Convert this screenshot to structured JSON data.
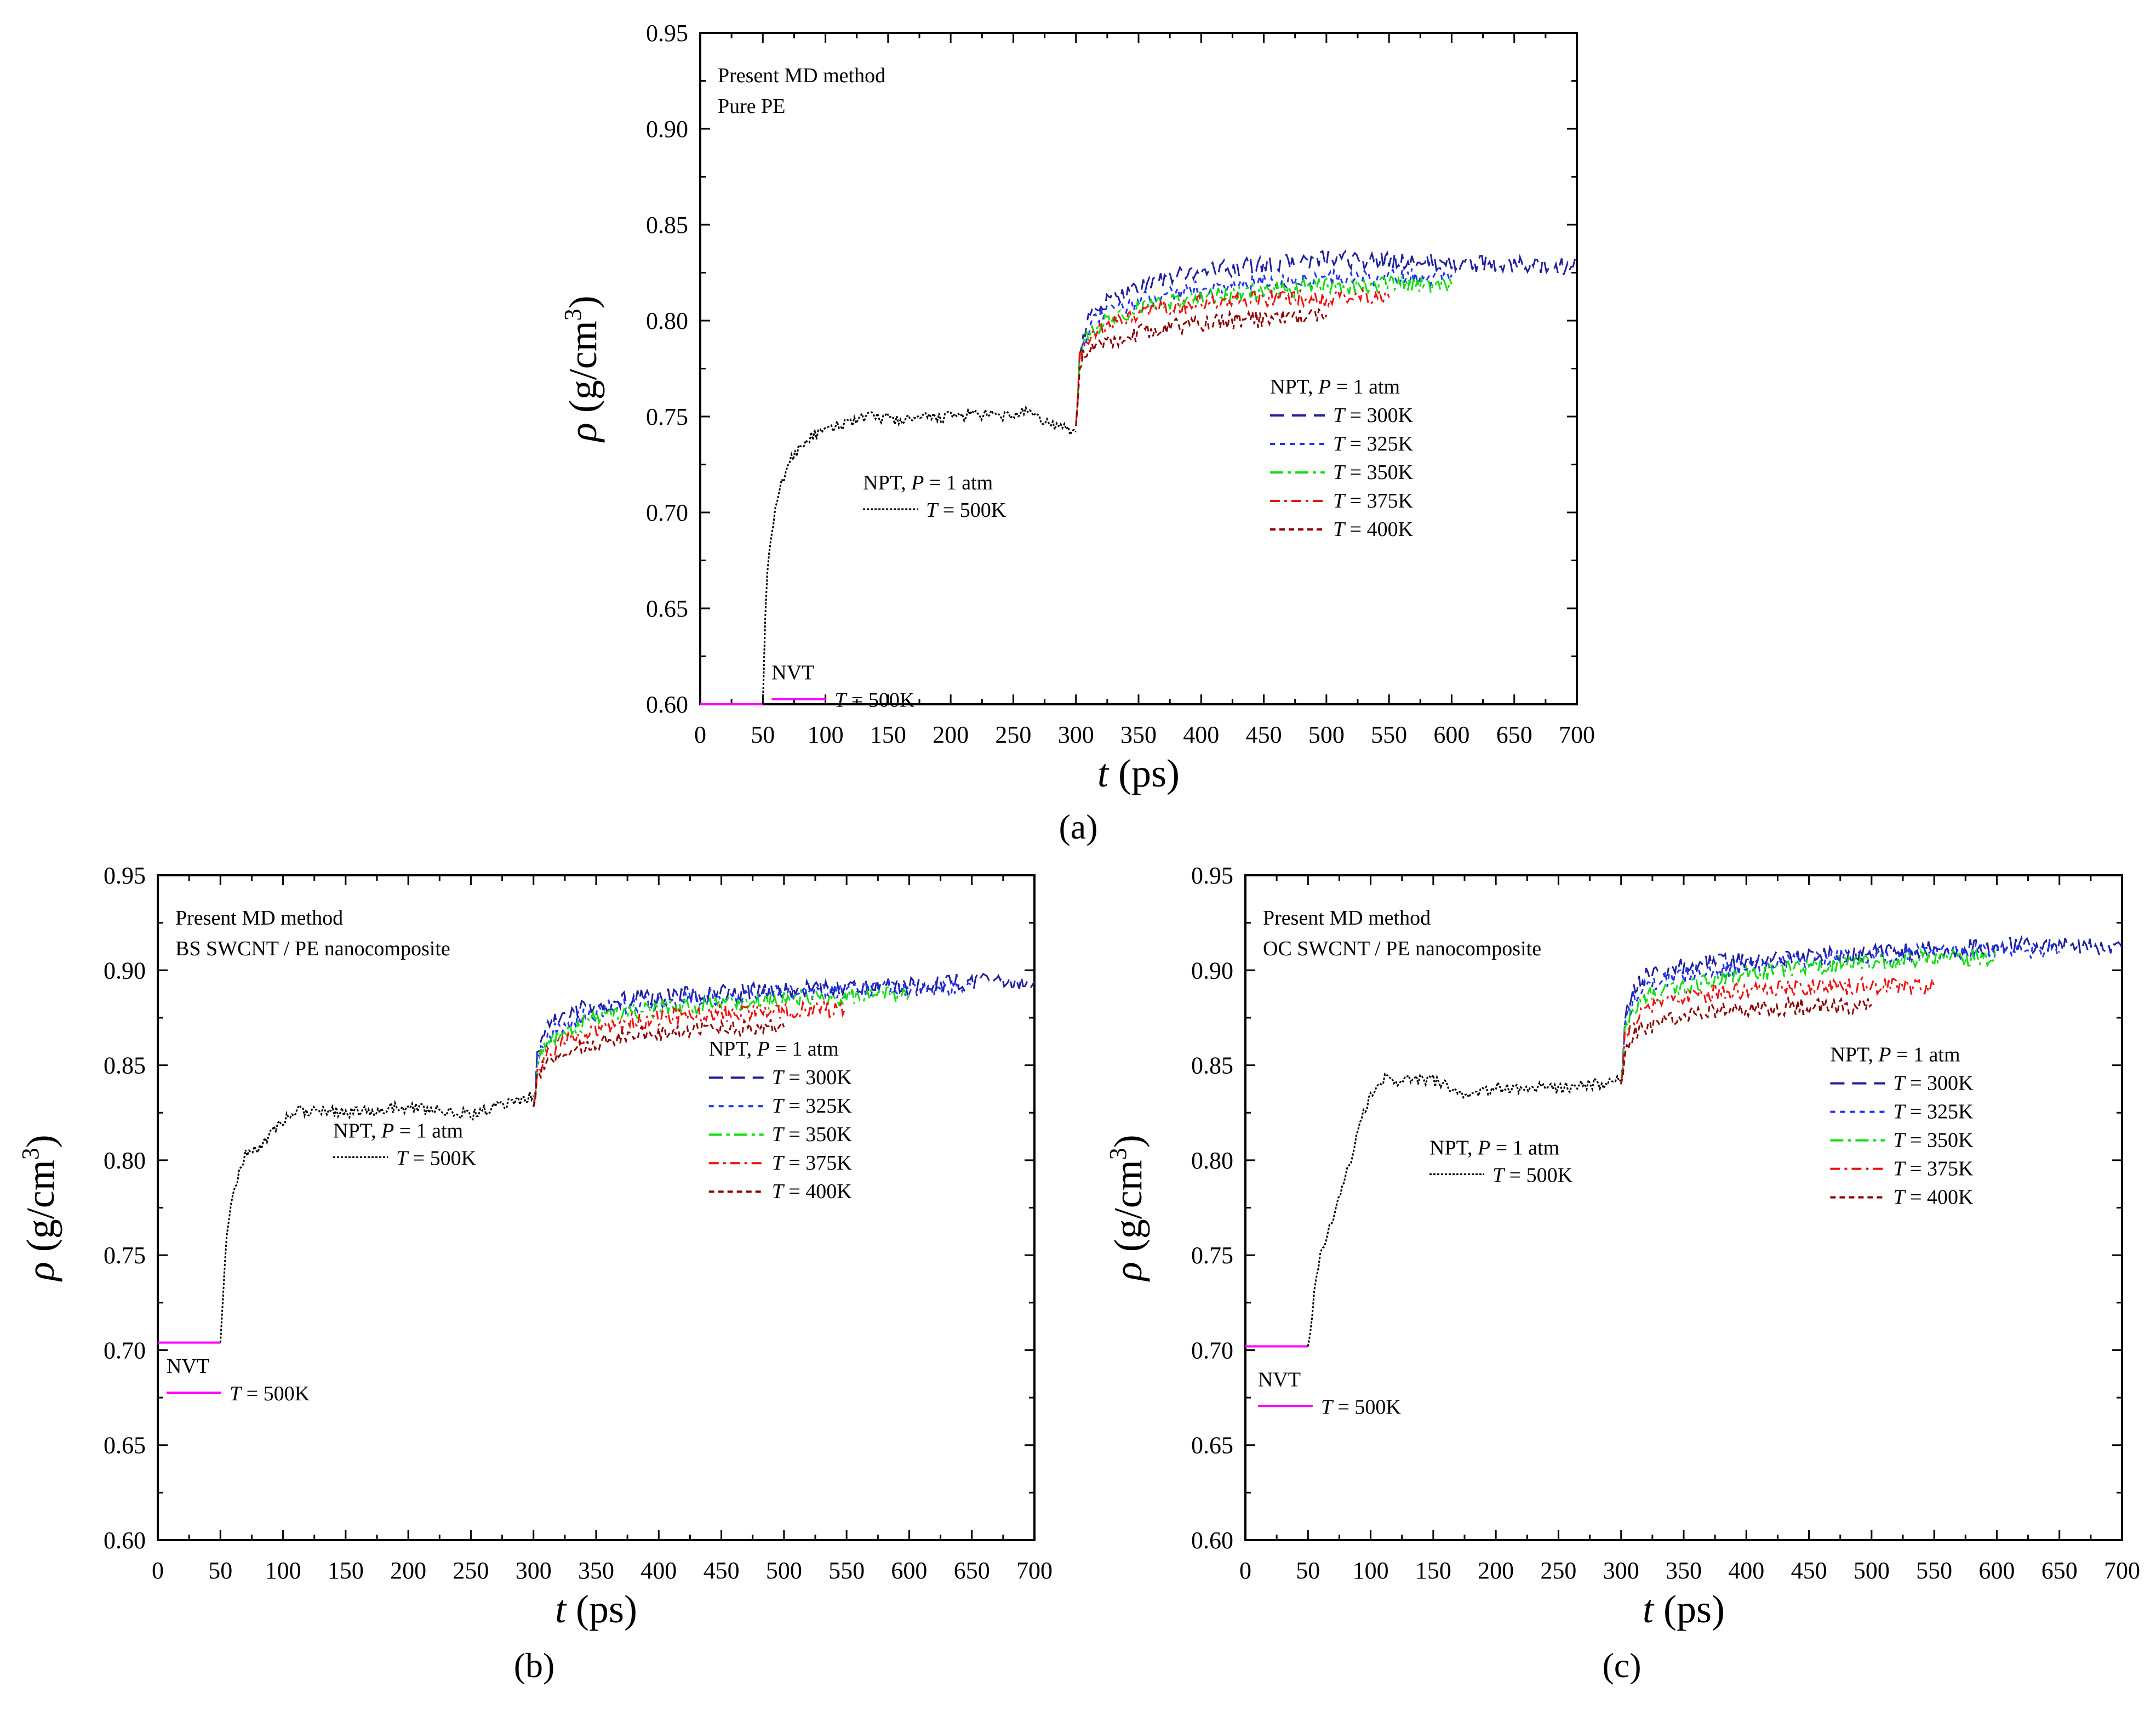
{
  "figure": {
    "panels": [
      {
        "id": "a",
        "caption": "(a)",
        "annotation": [
          "Present MD method",
          "Pure PE"
        ],
        "xlabel_sym": "t",
        "xlabel_unit": " (ps)",
        "ylabel_sym": "ρ",
        "ylabel_unit": " (g/cm",
        "ylabel_sup": "3",
        "ylabel_close": ")",
        "nvt_label": "NVT",
        "nvt_legend": "T = 500K",
        "npt500_label": "NPT, P = 1 atm",
        "npt500_legend": "T = 500K",
        "npt_label": "NPT, P = 1 atm",
        "legend": [
          "T = 300K",
          "T = 325K",
          "T = 350K",
          "T = 375K",
          "T = 400K"
        ]
      },
      {
        "id": "b",
        "caption": "(b)",
        "annotation": [
          "Present MD method",
          "BS SWCNT / PE nanocomposite"
        ],
        "xlabel_sym": "t",
        "xlabel_unit": " (ps)",
        "ylabel_sym": "ρ",
        "ylabel_unit": " (g/cm",
        "ylabel_sup": "3",
        "ylabel_close": ")",
        "nvt_label": "NVT",
        "nvt_legend": "T = 500K",
        "npt500_label": "NPT, P = 1 atm",
        "npt500_legend": "T = 500K",
        "npt_label": "NPT, P = 1 atm",
        "legend": [
          "T = 300K",
          "T = 325K",
          "T = 350K",
          "T = 375K",
          "T = 400K"
        ]
      },
      {
        "id": "c",
        "caption": "(c)",
        "annotation": [
          "Present MD method",
          "OC SWCNT / PE nanocomposite"
        ],
        "xlabel_sym": "t",
        "xlabel_unit": " (ps)",
        "ylabel_sym": "ρ",
        "ylabel_unit": " (g/cm",
        "ylabel_sup": "3",
        "ylabel_close": ")",
        "nvt_label": "NVT",
        "nvt_legend": "T = 500K",
        "npt500_label": "NPT, P = 1 atm",
        "npt500_legend": "T = 500K",
        "npt_label": "NPT, P = 1 atm",
        "legend": [
          "T = 300K",
          "T = 325K",
          "T = 350K",
          "T = 375K",
          "T = 400K"
        ]
      }
    ]
  },
  "chart_data": [
    {
      "type": "line",
      "panel": "a",
      "xlabel": "t (ps)",
      "ylabel": "ρ (g/cm3)",
      "xlim": [
        0,
        700
      ],
      "ylim": [
        0.6,
        0.95
      ],
      "xticks": [
        0,
        50,
        100,
        150,
        200,
        250,
        300,
        350,
        400,
        450,
        500,
        550,
        600,
        650,
        700
      ],
      "yticks": [
        0.6,
        0.65,
        0.7,
        0.75,
        0.8,
        0.85,
        0.9,
        0.95
      ],
      "colors": {
        "nvt": "#ff00ff",
        "npt500": "#000000",
        "300K": "#1f1f9f",
        "325K": "#2233ee",
        "350K": "#11dd11",
        "375K": "#ee1111",
        "400K": "#8b0000"
      },
      "series": [
        {
          "name": "NVT T = 500K",
          "x": [
            0,
            50
          ],
          "y": [
            0.6,
            0.6
          ]
        },
        {
          "name": "NPT T = 500K",
          "x": [
            50,
            52,
            55,
            60,
            65,
            70,
            80,
            90,
            100,
            120,
            140,
            160,
            180,
            200,
            220,
            240,
            260,
            280,
            300
          ],
          "y": [
            0.6,
            0.65,
            0.68,
            0.7,
            0.715,
            0.725,
            0.735,
            0.74,
            0.742,
            0.748,
            0.75,
            0.748,
            0.749,
            0.75,
            0.751,
            0.75,
            0.752,
            0.746,
            0.742
          ]
        },
        {
          "name": "T = 300K",
          "x": [
            300,
            303,
            310,
            320,
            340,
            360,
            380,
            400,
            450,
            500,
            550,
            600,
            650,
            700
          ],
          "y": [
            0.745,
            0.785,
            0.8,
            0.808,
            0.815,
            0.82,
            0.823,
            0.826,
            0.829,
            0.832,
            0.831,
            0.83,
            0.829,
            0.828
          ]
        },
        {
          "name": "T = 325K",
          "x": [
            300,
            303,
            310,
            320,
            340,
            360,
            380,
            400,
            450,
            500,
            550,
            600
          ],
          "y": [
            0.745,
            0.783,
            0.795,
            0.803,
            0.808,
            0.812,
            0.815,
            0.817,
            0.82,
            0.822,
            0.822,
            0.824
          ]
        },
        {
          "name": "T = 350K",
          "x": [
            300,
            303,
            310,
            320,
            340,
            360,
            380,
            400,
            450,
            500,
            550,
            600
          ],
          "y": [
            0.745,
            0.782,
            0.792,
            0.798,
            0.804,
            0.808,
            0.811,
            0.812,
            0.815,
            0.818,
            0.819,
            0.819
          ]
        },
        {
          "name": "T = 375K",
          "x": [
            300,
            303,
            310,
            320,
            340,
            360,
            380,
            400,
            450,
            500,
            550
          ],
          "y": [
            0.745,
            0.781,
            0.789,
            0.795,
            0.801,
            0.805,
            0.807,
            0.809,
            0.811,
            0.812,
            0.812
          ]
        },
        {
          "name": "T = 400K",
          "x": [
            300,
            303,
            310,
            320,
            340,
            360,
            380,
            400,
            450,
            500
          ],
          "y": [
            0.745,
            0.778,
            0.784,
            0.788,
            0.792,
            0.795,
            0.797,
            0.799,
            0.801,
            0.803
          ]
        }
      ]
    },
    {
      "type": "line",
      "panel": "b",
      "xlabel": "t (ps)",
      "ylabel": "ρ (g/cm3)",
      "xlim": [
        0,
        700
      ],
      "ylim": [
        0.6,
        0.95
      ],
      "xticks": [
        0,
        50,
        100,
        150,
        200,
        250,
        300,
        350,
        400,
        450,
        500,
        550,
        600,
        650,
        700
      ],
      "yticks": [
        0.6,
        0.65,
        0.7,
        0.75,
        0.8,
        0.85,
        0.9,
        0.95
      ],
      "colors": {
        "nvt": "#ff00ff",
        "npt500": "#000000",
        "300K": "#1f1f9f",
        "325K": "#2233ee",
        "350K": "#11dd11",
        "375K": "#ee1111",
        "400K": "#8b0000"
      },
      "series": [
        {
          "name": "NVT T = 500K",
          "x": [
            0,
            50
          ],
          "y": [
            0.704,
            0.704
          ]
        },
        {
          "name": "NPT T = 500K",
          "x": [
            50,
            52,
            55,
            60,
            65,
            70,
            80,
            90,
            100,
            110,
            120,
            150,
            200,
            250,
            280,
            300
          ],
          "y": [
            0.704,
            0.73,
            0.76,
            0.78,
            0.795,
            0.803,
            0.807,
            0.813,
            0.82,
            0.826,
            0.826,
            0.825,
            0.828,
            0.824,
            0.83,
            0.834
          ]
        },
        {
          "name": "T = 300K",
          "x": [
            300,
            303,
            310,
            320,
            340,
            360,
            380,
            400,
            450,
            500,
            550,
            600,
            650,
            700
          ],
          "y": [
            0.828,
            0.855,
            0.868,
            0.875,
            0.88,
            0.883,
            0.885,
            0.886,
            0.888,
            0.89,
            0.891,
            0.892,
            0.894,
            0.894
          ]
        },
        {
          "name": "T = 325K",
          "x": [
            300,
            303,
            310,
            320,
            340,
            360,
            380,
            400,
            450,
            500,
            550,
            600,
            650
          ],
          "y": [
            0.828,
            0.853,
            0.863,
            0.87,
            0.876,
            0.88,
            0.882,
            0.884,
            0.886,
            0.888,
            0.889,
            0.89,
            0.891
          ]
        },
        {
          "name": "T = 350K",
          "x": [
            300,
            303,
            310,
            320,
            340,
            360,
            380,
            400,
            450,
            500,
            550,
            600
          ],
          "y": [
            0.828,
            0.851,
            0.86,
            0.866,
            0.872,
            0.876,
            0.878,
            0.88,
            0.882,
            0.884,
            0.886,
            0.887
          ]
        },
        {
          "name": "T = 375K",
          "x": [
            300,
            303,
            310,
            320,
            340,
            360,
            380,
            400,
            450,
            500,
            550
          ],
          "y": [
            0.828,
            0.848,
            0.856,
            0.861,
            0.866,
            0.87,
            0.873,
            0.875,
            0.877,
            0.879,
            0.88
          ]
        },
        {
          "name": "T = 400K",
          "x": [
            300,
            303,
            310,
            320,
            340,
            360,
            380,
            400,
            450,
            500
          ],
          "y": [
            0.828,
            0.845,
            0.851,
            0.856,
            0.86,
            0.863,
            0.866,
            0.867,
            0.869,
            0.87
          ]
        }
      ]
    },
    {
      "type": "line",
      "panel": "c",
      "xlabel": "t (ps)",
      "ylabel": "ρ (g/cm3)",
      "xlim": [
        0,
        700
      ],
      "ylim": [
        0.6,
        0.95
      ],
      "xticks": [
        0,
        50,
        100,
        150,
        200,
        250,
        300,
        350,
        400,
        450,
        500,
        550,
        600,
        650,
        700
      ],
      "yticks": [
        0.6,
        0.65,
        0.7,
        0.75,
        0.8,
        0.85,
        0.9,
        0.95
      ],
      "colors": {
        "nvt": "#ff00ff",
        "npt500": "#000000",
        "300K": "#1f1f9f",
        "325K": "#2233ee",
        "350K": "#11dd11",
        "375K": "#ee1111",
        "400K": "#8b0000"
      },
      "series": [
        {
          "name": "NVT T = 500K",
          "x": [
            0,
            50
          ],
          "y": [
            0.702,
            0.702
          ]
        },
        {
          "name": "NPT T = 500K",
          "x": [
            50,
            55,
            60,
            70,
            80,
            90,
            100,
            110,
            120,
            150,
            180,
            200,
            250,
            280,
            300
          ],
          "y": [
            0.702,
            0.73,
            0.75,
            0.77,
            0.79,
            0.815,
            0.835,
            0.843,
            0.842,
            0.842,
            0.833,
            0.838,
            0.838,
            0.84,
            0.842
          ]
        },
        {
          "name": "T = 300K",
          "x": [
            300,
            303,
            310,
            320,
            340,
            360,
            380,
            400,
            450,
            500,
            550,
            600,
            650,
            700
          ],
          "y": [
            0.84,
            0.875,
            0.89,
            0.897,
            0.901,
            0.903,
            0.904,
            0.905,
            0.907,
            0.909,
            0.911,
            0.913,
            0.913,
            0.912
          ]
        },
        {
          "name": "T = 325K",
          "x": [
            300,
            303,
            310,
            320,
            340,
            360,
            380,
            400,
            450,
            500,
            550,
            600,
            650
          ],
          "y": [
            0.84,
            0.872,
            0.885,
            0.892,
            0.896,
            0.899,
            0.9,
            0.902,
            0.905,
            0.908,
            0.91,
            0.911,
            0.91
          ]
        },
        {
          "name": "T = 350K",
          "x": [
            300,
            303,
            310,
            320,
            340,
            360,
            380,
            400,
            450,
            500,
            550,
            600
          ],
          "y": [
            0.84,
            0.868,
            0.88,
            0.886,
            0.89,
            0.893,
            0.896,
            0.898,
            0.902,
            0.905,
            0.906,
            0.907
          ]
        },
        {
          "name": "T = 375K",
          "x": [
            300,
            303,
            310,
            320,
            340,
            360,
            380,
            400,
            450,
            500,
            550
          ],
          "y": [
            0.84,
            0.864,
            0.874,
            0.88,
            0.884,
            0.887,
            0.888,
            0.889,
            0.891,
            0.892,
            0.891
          ]
        },
        {
          "name": "T = 400K",
          "x": [
            300,
            303,
            310,
            320,
            340,
            360,
            380,
            400,
            450,
            500
          ],
          "y": [
            0.84,
            0.858,
            0.866,
            0.87,
            0.874,
            0.877,
            0.879,
            0.88,
            0.881,
            0.882
          ]
        }
      ]
    }
  ]
}
